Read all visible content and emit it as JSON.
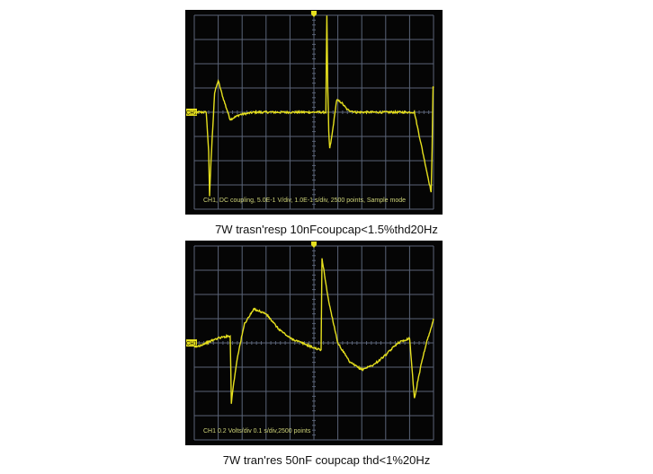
{
  "chart_data": [
    {
      "type": "line",
      "title": "",
      "caption": "7W trasn'resp 10nFcoupcap<1.5%thd20Hz",
      "channel_marker": "CH1",
      "status_line": "CH1, DC coupling, 5.0E-1 V/div, 1.0E-1 s/div, 2500 points, Sample mode",
      "grid": true,
      "divisions": {
        "x": 10,
        "y": 8
      },
      "trace_color": "#e6e01e",
      "grid_color": "#5a6478",
      "x_unit": "div",
      "y_unit": "div",
      "xlim": [
        0,
        10
      ],
      "ylim": [
        -4,
        4
      ],
      "series": [
        {
          "values_x": [
            0,
            0.5,
            0.6,
            0.64,
            0.7,
            0.85,
            1.0,
            1.2,
            1.5,
            1.9,
            2.5,
            3.5,
            4.5,
            5.2,
            5.5,
            5.54,
            5.58,
            5.62,
            5.66,
            5.75,
            5.95,
            6.15,
            6.4,
            6.75,
            7.1,
            7.6,
            8.3,
            9.2,
            9.9,
            9.94,
            9.98,
            10.0
          ],
          "values_y": [
            0,
            0,
            -1.6,
            -3.5,
            -2.0,
            0.8,
            1.3,
            0.6,
            -0.3,
            -0.1,
            0,
            0,
            0,
            0,
            0,
            4.0,
            1.0,
            -0.8,
            -1.5,
            -1.0,
            0.5,
            0.4,
            0.1,
            0,
            0,
            0,
            0,
            0,
            -3.3,
            -1.6,
            1.1,
            1.0
          ]
        }
      ]
    },
    {
      "type": "line",
      "title": "",
      "caption": "7W tran'res 50nF coupcap thd<1%20Hz",
      "channel_marker": "CH1",
      "status_line": "CH1 0.2 Volts/div 0.1 s/div,2500 points",
      "grid": true,
      "divisions": {
        "x": 10,
        "y": 8
      },
      "trace_color": "#e6e01e",
      "grid_color": "#5a6478",
      "x_unit": "div",
      "y_unit": "div",
      "xlim": [
        0,
        10
      ],
      "ylim": [
        -4,
        4
      ],
      "series": [
        {
          "values_x": [
            0,
            0.5,
            1.0,
            1.5,
            1.55,
            1.6,
            1.8,
            2.1,
            2.5,
            3.0,
            3.5,
            4.0,
            4.5,
            5.0,
            5.3,
            5.34,
            5.6,
            6.0,
            6.5,
            7.0,
            7.5,
            8.0,
            8.5,
            9.0,
            9.2,
            9.3,
            9.5,
            9.7,
            9.9,
            10.0
          ],
          "values_y": [
            -0.2,
            0.0,
            0.2,
            0.3,
            -2.5,
            -2.0,
            -0.6,
            0.8,
            1.4,
            1.2,
            0.6,
            0.2,
            0.0,
            -0.2,
            -0.3,
            3.5,
            1.8,
            0.0,
            -0.8,
            -1.1,
            -0.9,
            -0.5,
            0.0,
            0.2,
            -2.3,
            -1.8,
            -0.8,
            0.0,
            0.6,
            1.0
          ]
        }
      ]
    }
  ]
}
